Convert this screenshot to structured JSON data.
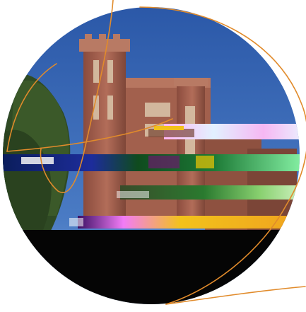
{
  "image": {
    "subject": "",
    "colors": {
      "sky": "#2f5fb0",
      "brick": "#a4634f",
      "brick_dark": "#7b4537",
      "stone": "#d8c1a6",
      "tree": "#3c5a2a",
      "orange_curve": "#e18b2b",
      "black_band": "#050505",
      "glitch_blue": "#0e2d78",
      "glitch_green": "#1d7a36",
      "glitch_pink": "#f2b6f2",
      "glitch_yellow": "#f2c21b"
    }
  }
}
